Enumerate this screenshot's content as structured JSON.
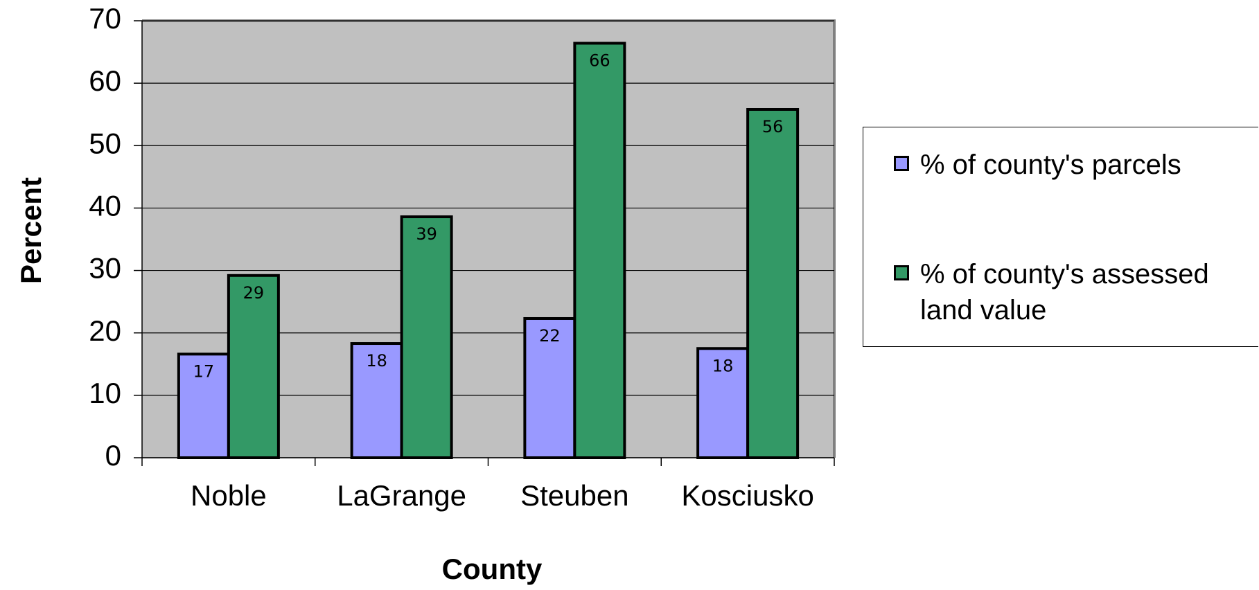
{
  "chart_data": {
    "type": "bar",
    "x_label": "County",
    "y_label": "Percent",
    "categories": [
      "Noble",
      "LaGrange",
      "Steuben",
      "Kosciusko"
    ],
    "series": [
      {
        "name": "% of county's parcels",
        "color": "#9999ff",
        "values": [
          16.6,
          18.3,
          22.3,
          17.5
        ],
        "value_labels": [
          "17",
          "18",
          "22",
          "18"
        ]
      },
      {
        "name": "% of county's assessed land value",
        "color": "#339966",
        "values": [
          29.2,
          38.6,
          66.4,
          55.8
        ],
        "value_labels": [
          "29",
          "39",
          "66",
          "56"
        ]
      }
    ],
    "ylim": [
      0,
      70
    ],
    "yticks": [
      0,
      10,
      20,
      30,
      40,
      50,
      60,
      70
    ],
    "grid": true,
    "legend": "right"
  }
}
